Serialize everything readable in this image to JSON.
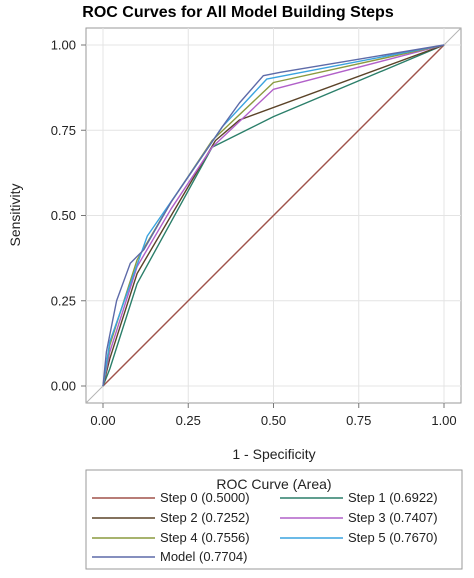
{
  "chart_data": {
    "type": "line",
    "title": "ROC Curves for All Model Building Steps",
    "xlabel": "1 - Specificity",
    "ylabel": "Sensitivity",
    "xlim": [
      0,
      1
    ],
    "ylim": [
      0,
      1
    ],
    "xticks": [
      "0.00",
      "0.25",
      "0.50",
      "0.75",
      "1.00"
    ],
    "yticks": [
      "0.00",
      "0.25",
      "0.50",
      "0.75",
      "1.00"
    ],
    "grid": true,
    "diagonal_reference": true,
    "legend": {
      "title": "ROC Curve (Area)",
      "placement": "bottom"
    },
    "series": [
      {
        "name": "Step 0",
        "area": "(0.5000)",
        "color": "#a0524a",
        "points": [
          [
            0,
            0
          ],
          [
            1,
            1
          ]
        ]
      },
      {
        "name": "Step 1",
        "area": "(0.6922)",
        "color": "#2b7f6a",
        "points": [
          [
            0,
            0
          ],
          [
            0.02,
            0.05
          ],
          [
            0.1,
            0.3
          ],
          [
            0.32,
            0.7
          ],
          [
            0.5,
            0.79
          ],
          [
            1,
            1
          ]
        ]
      },
      {
        "name": "Step 2",
        "area": "(0.7252)",
        "color": "#5b4328",
        "points": [
          [
            0,
            0
          ],
          [
            0.02,
            0.08
          ],
          [
            0.1,
            0.33
          ],
          [
            0.2,
            0.5
          ],
          [
            0.33,
            0.72
          ],
          [
            0.4,
            0.78
          ],
          [
            1,
            1
          ]
        ]
      },
      {
        "name": "Step 3",
        "area": "(0.7407)",
        "color": "#b160c9",
        "points": [
          [
            0,
            0
          ],
          [
            0.02,
            0.1
          ],
          [
            0.1,
            0.35
          ],
          [
            0.2,
            0.52
          ],
          [
            0.32,
            0.7
          ],
          [
            0.5,
            0.87
          ],
          [
            1,
            1
          ]
        ]
      },
      {
        "name": "Step 4",
        "area": "(0.7556)",
        "color": "#8a9a3f",
        "points": [
          [
            0,
            0
          ],
          [
            0.02,
            0.12
          ],
          [
            0.1,
            0.37
          ],
          [
            0.2,
            0.54
          ],
          [
            0.32,
            0.72
          ],
          [
            0.5,
            0.89
          ],
          [
            1,
            1
          ]
        ]
      },
      {
        "name": "Step 5",
        "area": "(0.7670)",
        "color": "#3aa3df",
        "points": [
          [
            0,
            0
          ],
          [
            0.02,
            0.13
          ],
          [
            0.13,
            0.44
          ],
          [
            0.22,
            0.57
          ],
          [
            0.35,
            0.76
          ],
          [
            0.48,
            0.9
          ],
          [
            1,
            1
          ]
        ]
      },
      {
        "name": "Model",
        "area": "(0.7704)",
        "color": "#5d6aa8",
        "points": [
          [
            0,
            0
          ],
          [
            0.01,
            0.1
          ],
          [
            0.04,
            0.25
          ],
          [
            0.08,
            0.36
          ],
          [
            0.12,
            0.4
          ],
          [
            0.2,
            0.54
          ],
          [
            0.35,
            0.76
          ],
          [
            0.4,
            0.83
          ],
          [
            0.47,
            0.91
          ],
          [
            0.52,
            0.92
          ],
          [
            1,
            1
          ]
        ]
      }
    ]
  }
}
